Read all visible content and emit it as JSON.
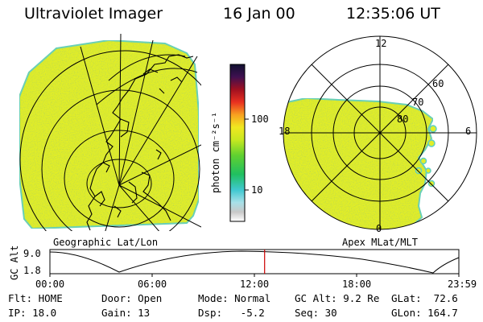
{
  "header": {
    "instrument": "Ultraviolet Imager",
    "date": "16 Jan 00",
    "time": "12:35:06 UT"
  },
  "colorbar": {
    "unit_label": "photon cm⁻²s⁻¹",
    "tick_labels": [
      "100",
      "10"
    ]
  },
  "geo_panel": {
    "caption": "Geographic Lat/Lon"
  },
  "polar_panel": {
    "caption": "Apex MLat/MLT",
    "mlt_labels": [
      "12",
      "18",
      "6",
      "0"
    ],
    "mlat_labels": [
      "60",
      "70",
      "80"
    ]
  },
  "altitude_strip": {
    "axis_title": "GC Alt",
    "y_ticks": [
      "9.0",
      "1.8"
    ],
    "time_ticks": [
      "00:00",
      "06:00",
      "12:00",
      "18:00",
      "23:59"
    ],
    "current_time_fraction": 0.525
  },
  "status": {
    "flt": "Flt: HOME",
    "ip": "IP: 18.0",
    "door": "Door: Open",
    "gain": "Gain: 13",
    "mode": "Mode: Normal",
    "dsp": "Dsp:   -5.2",
    "gc_alt": "GC Alt: 9.2 Re",
    "seq": "Seq: 30",
    "glat": "GLat:  72.6",
    "glon": "GLon: 164.7"
  },
  "colors": {
    "image_fill": "#e2ee28",
    "image_edge": "#5fd0c0",
    "time_marker": "#cc0000"
  }
}
